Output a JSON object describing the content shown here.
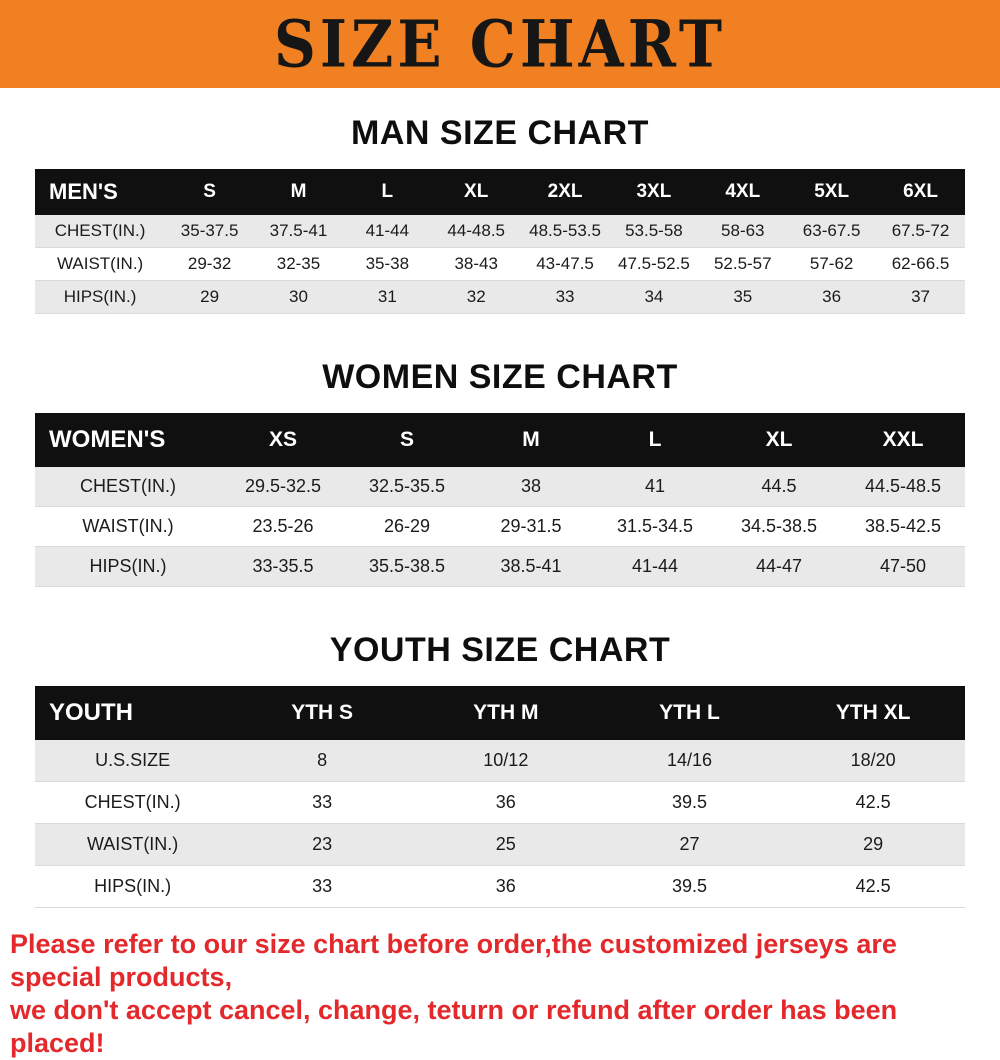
{
  "banner": {
    "title": "SIZE CHART"
  },
  "colors": {
    "banner_orange": "#F08021",
    "header_black": "#101010",
    "row_gray": "#e9e9e9",
    "notice_red": "#E3292B"
  },
  "sections": [
    {
      "id": "man-size-chart",
      "heading": "MAN SIZE CHART",
      "table": {
        "header": [
          "MEN'S",
          "S",
          "M",
          "L",
          "XL",
          "2XL",
          "3XL",
          "4XL",
          "5XL",
          "6XL"
        ],
        "rows": [
          [
            "CHEST(IN.)",
            "35-37.5",
            "37.5-41",
            "41-44",
            "44-48.5",
            "48.5-53.5",
            "53.5-58",
            "58-63",
            "63-67.5",
            "67.5-72"
          ],
          [
            "WAIST(IN.)",
            "29-32",
            "32-35",
            "35-38",
            "38-43",
            "43-47.5",
            "47.5-52.5",
            "52.5-57",
            "57-62",
            "62-66.5"
          ],
          [
            "HIPS(IN.)",
            "29",
            "30",
            "31",
            "32",
            "33",
            "34",
            "35",
            "36",
            "37"
          ]
        ]
      }
    },
    {
      "id": "women-size-chart",
      "heading": "WOMEN SIZE CHART",
      "table": {
        "header": [
          "WOMEN'S",
          "XS",
          "S",
          "M",
          "L",
          "XL",
          "XXL"
        ],
        "rows": [
          [
            "CHEST(IN.)",
            "29.5-32.5",
            "32.5-35.5",
            "38",
            "41",
            "44.5",
            "44.5-48.5"
          ],
          [
            "WAIST(IN.)",
            "23.5-26",
            "26-29",
            "29-31.5",
            "31.5-34.5",
            "34.5-38.5",
            "38.5-42.5"
          ],
          [
            "HIPS(IN.)",
            "33-35.5",
            "35.5-38.5",
            "38.5-41",
            "41-44",
            "44-47",
            "47-50"
          ]
        ]
      }
    },
    {
      "id": "youth-size-chart",
      "heading": "YOUTH SIZE CHART",
      "table": {
        "header": [
          "YOUTH",
          "YTH S",
          "YTH M",
          "YTH L",
          "YTH XL"
        ],
        "rows": [
          [
            "U.S.SIZE",
            "8",
            "10/12",
            "14/16",
            "18/20"
          ],
          [
            "CHEST(IN.)",
            "33",
            "36",
            "39.5",
            "42.5"
          ],
          [
            "WAIST(IN.)",
            "23",
            "25",
            "27",
            "29"
          ],
          [
            "HIPS(IN.)",
            "33",
            "36",
            "39.5",
            "42.5"
          ]
        ]
      }
    }
  ],
  "footer": {
    "line1": "Please refer to our size chart before order,the customized jerseys are special products,",
    "line2": "we don't accept cancel, change, teturn or refund after order has been placed!"
  }
}
